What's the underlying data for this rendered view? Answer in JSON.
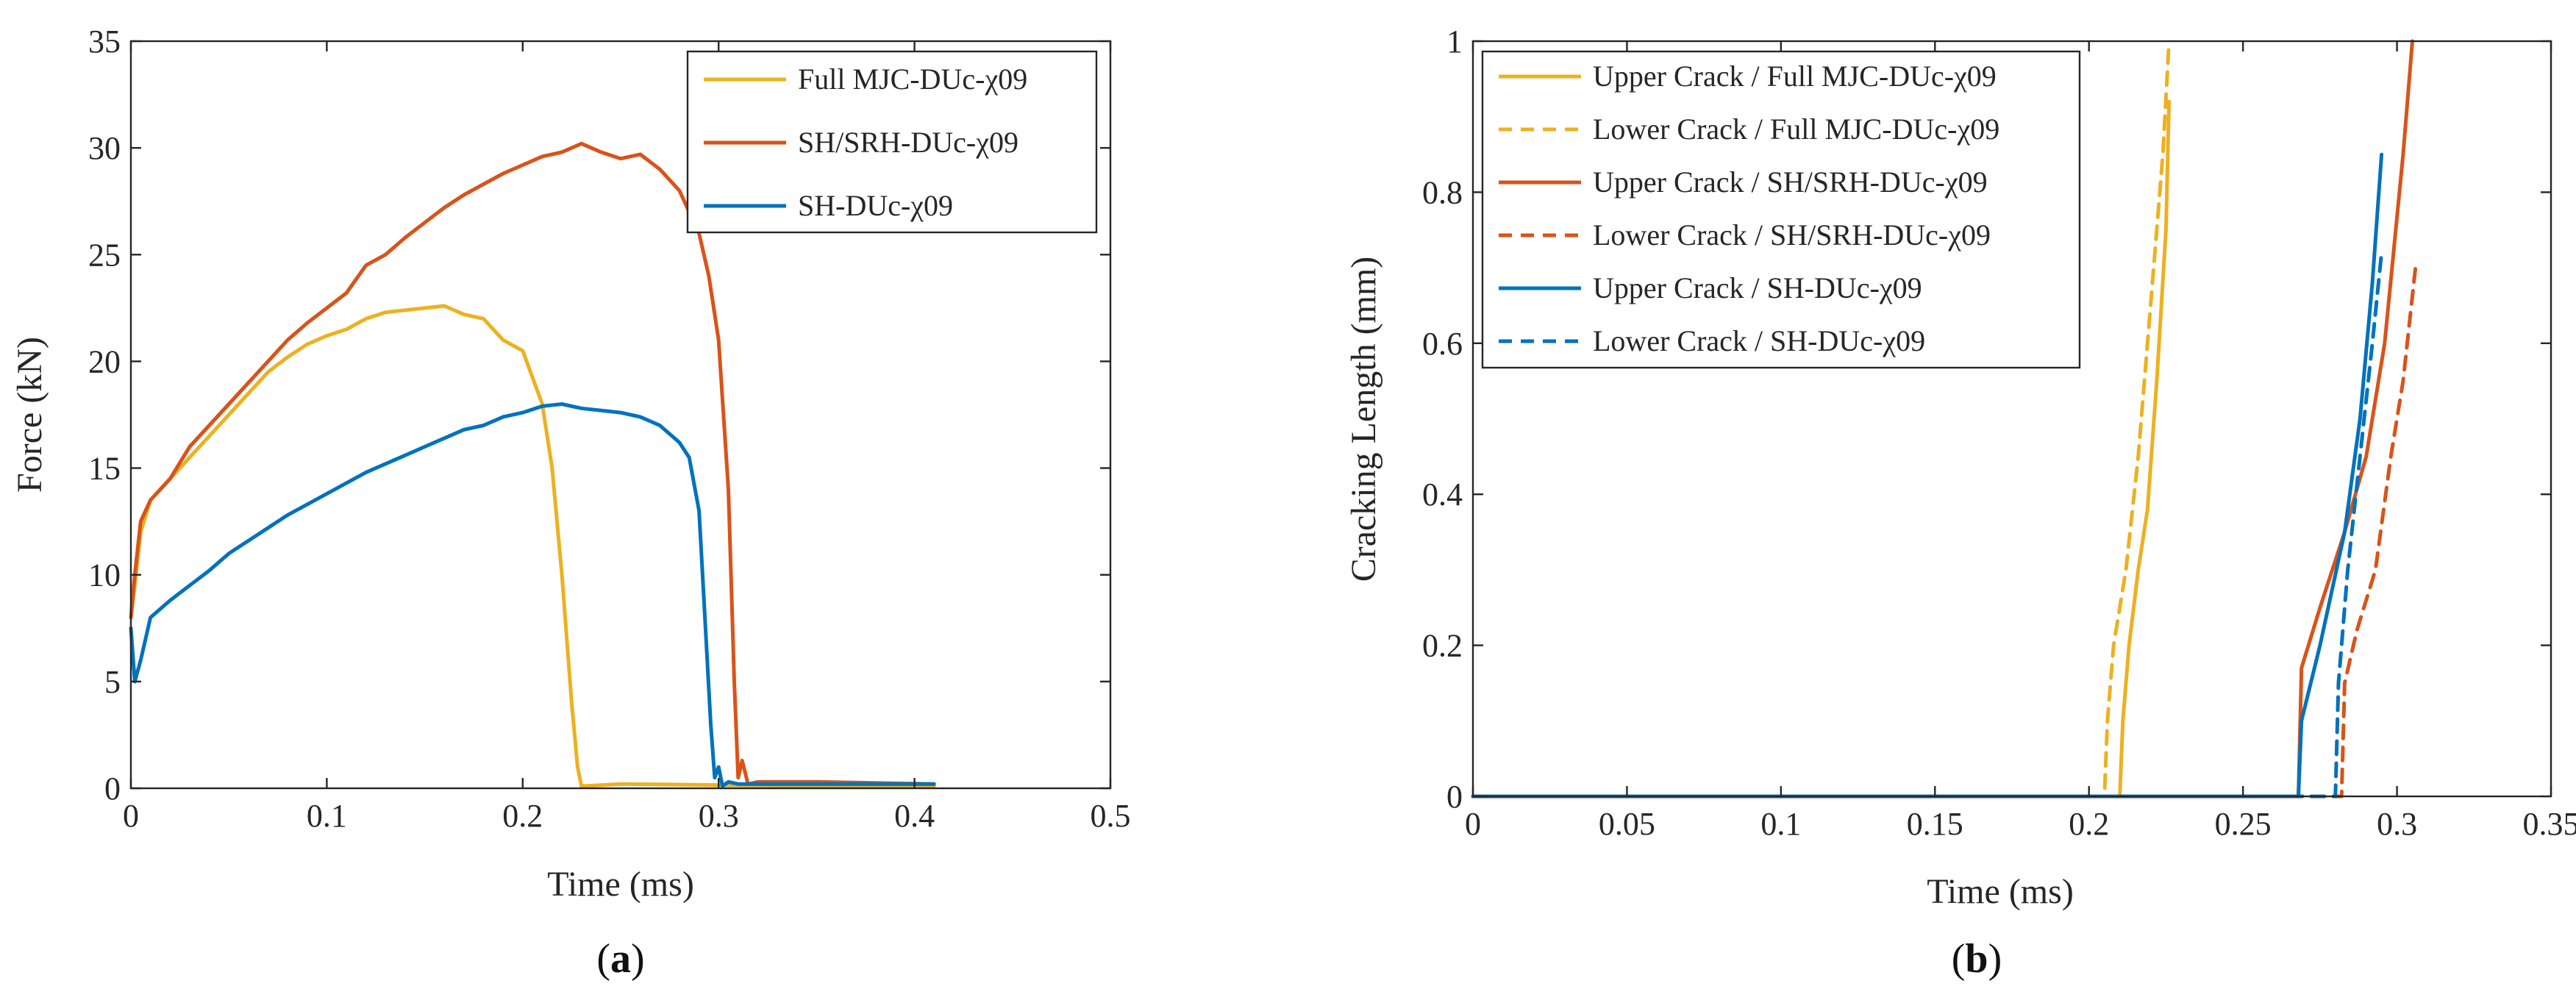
{
  "colors": {
    "yellow": "#EDB120",
    "orange": "#D95319",
    "blue": "#0072BD",
    "axis": "#262626"
  },
  "panels": [
    {
      "label_pre": "(",
      "label_letter": "a",
      "label_post": ")"
    },
    {
      "label_pre": "(",
      "label_letter": "b",
      "label_post": ")"
    }
  ],
  "chart_data": [
    {
      "type": "line",
      "title": "",
      "xlabel": "Time (ms)",
      "ylabel": "Force (kN)",
      "xlim": [
        0,
        0.5
      ],
      "ylim": [
        0,
        35
      ],
      "xticks": [
        0,
        0.1,
        0.2,
        0.3,
        0.4,
        0.5
      ],
      "xtick_labels": [
        "0",
        "0.1",
        "0.2",
        "0.3",
        "0.4",
        "0.5"
      ],
      "yticks": [
        0,
        5,
        10,
        15,
        20,
        25,
        30,
        35
      ],
      "ytick_labels": [
        "0",
        "5",
        "10",
        "15",
        "20",
        "25",
        "30",
        "35"
      ],
      "legend_position": "top-right",
      "series": [
        {
          "name": "Full MJC-DUc-χ09",
          "color": "#EDB120",
          "dash": "solid",
          "x": [
            0,
            0.002,
            0.005,
            0.01,
            0.02,
            0.03,
            0.04,
            0.05,
            0.06,
            0.07,
            0.08,
            0.09,
            0.1,
            0.11,
            0.12,
            0.13,
            0.14,
            0.15,
            0.16,
            0.17,
            0.18,
            0.19,
            0.2,
            0.21,
            0.215,
            0.22,
            0.225,
            0.228,
            0.23,
            0.25,
            0.3,
            0.35,
            0.41
          ],
          "y": [
            8,
            9.5,
            12,
            13.5,
            14.5,
            15.5,
            16.5,
            17.5,
            18.5,
            19.5,
            20.2,
            20.8,
            21.2,
            21.5,
            22.0,
            22.3,
            22.4,
            22.5,
            22.6,
            22.2,
            22.0,
            21.0,
            20.5,
            18.0,
            15.0,
            10.0,
            4.0,
            1.0,
            0.1,
            0.2,
            0.15,
            0.1,
            0.1
          ]
        },
        {
          "name": "SH/SRH-DUc-χ09",
          "color": "#D95319",
          "dash": "solid",
          "x": [
            0,
            0.002,
            0.005,
            0.01,
            0.02,
            0.03,
            0.04,
            0.05,
            0.06,
            0.07,
            0.08,
            0.09,
            0.1,
            0.11,
            0.12,
            0.13,
            0.14,
            0.15,
            0.16,
            0.17,
            0.18,
            0.19,
            0.2,
            0.21,
            0.22,
            0.23,
            0.24,
            0.25,
            0.26,
            0.27,
            0.28,
            0.29,
            0.295,
            0.3,
            0.305,
            0.308,
            0.31,
            0.312,
            0.315,
            0.32,
            0.35,
            0.41
          ],
          "y": [
            8,
            10,
            12.5,
            13.5,
            14.5,
            16,
            17,
            18,
            19,
            20,
            21,
            21.8,
            22.5,
            23.2,
            24.5,
            25.0,
            25.8,
            26.5,
            27.2,
            27.8,
            28.3,
            28.8,
            29.2,
            29.6,
            29.8,
            30.2,
            29.8,
            29.5,
            29.7,
            29.0,
            28.0,
            26.0,
            24.0,
            21.0,
            14.0,
            5.0,
            0.5,
            1.3,
            0.2,
            0.3,
            0.3,
            0.2
          ]
        },
        {
          "name": "SH-DUc-χ09",
          "color": "#0072BD",
          "dash": "solid",
          "x": [
            0,
            0.002,
            0.005,
            0.01,
            0.02,
            0.03,
            0.04,
            0.05,
            0.06,
            0.07,
            0.08,
            0.09,
            0.1,
            0.11,
            0.12,
            0.13,
            0.14,
            0.15,
            0.16,
            0.17,
            0.18,
            0.19,
            0.2,
            0.21,
            0.22,
            0.23,
            0.24,
            0.25,
            0.26,
            0.27,
            0.28,
            0.285,
            0.29,
            0.293,
            0.296,
            0.298,
            0.3,
            0.302,
            0.305,
            0.31,
            0.35,
            0.41
          ],
          "y": [
            7.5,
            5,
            6,
            8,
            8.8,
            9.5,
            10.2,
            11,
            11.6,
            12.2,
            12.8,
            13.3,
            13.8,
            14.3,
            14.8,
            15.2,
            15.6,
            16.0,
            16.4,
            16.8,
            17.0,
            17.4,
            17.6,
            17.9,
            18.0,
            17.8,
            17.7,
            17.6,
            17.4,
            17.0,
            16.2,
            15.5,
            13.0,
            8.0,
            3.0,
            0.5,
            1.0,
            0.1,
            0.3,
            0.2,
            0.2,
            0.2
          ]
        }
      ]
    },
    {
      "type": "line",
      "title": "",
      "xlabel": "Time (ms)",
      "ylabel": "Cracking Length (mm)",
      "xlim": [
        0,
        0.35
      ],
      "ylim": [
        0,
        1
      ],
      "xticks": [
        0,
        0.05,
        0.1,
        0.15,
        0.2,
        0.25,
        0.3,
        0.35
      ],
      "xtick_labels": [
        "0",
        "0.05",
        "0.1",
        "0.15",
        "0.2",
        "0.25",
        "0.3",
        "0.35"
      ],
      "yticks": [
        0,
        0.2,
        0.4,
        0.6,
        0.8,
        1
      ],
      "ytick_labels": [
        "0",
        "0.2",
        "0.4",
        "0.6",
        "0.8",
        "1"
      ],
      "legend_position": "top-left",
      "series": [
        {
          "name": "Upper Crack / Full MJC-DUc-χ09",
          "color": "#EDB120",
          "dash": "solid",
          "x": [
            0,
            0.21,
            0.211,
            0.213,
            0.216,
            0.219,
            0.222,
            0.225,
            0.226
          ],
          "y": [
            0,
            0,
            0.1,
            0.2,
            0.3,
            0.38,
            0.55,
            0.75,
            0.92
          ]
        },
        {
          "name": "Lower Crack / Full MJC-DUc-χ09",
          "color": "#EDB120",
          "dash": "dashed",
          "x": [
            0,
            0.205,
            0.206,
            0.208,
            0.212,
            0.216,
            0.22,
            0.224,
            0.226
          ],
          "y": [
            0,
            0,
            0.1,
            0.2,
            0.3,
            0.45,
            0.65,
            0.85,
            1.0
          ]
        },
        {
          "name": "Upper Crack / SH/SRH-DUc-χ09",
          "color": "#D95319",
          "dash": "solid",
          "x": [
            0,
            0.268,
            0.269,
            0.275,
            0.283,
            0.29,
            0.296,
            0.302,
            0.305
          ],
          "y": [
            0,
            0,
            0.17,
            0.25,
            0.35,
            0.45,
            0.6,
            0.85,
            1.0
          ]
        },
        {
          "name": "Lower Crack / SH/SRH-DUc-χ09",
          "color": "#D95319",
          "dash": "dashed",
          "x": [
            0,
            0.282,
            0.283,
            0.287,
            0.293,
            0.298,
            0.302,
            0.306
          ],
          "y": [
            0,
            0,
            0.15,
            0.22,
            0.3,
            0.45,
            0.55,
            0.7
          ]
        },
        {
          "name": "Upper Crack / SH-DUc-χ09",
          "color": "#0072BD",
          "dash": "solid",
          "x": [
            0,
            0.268,
            0.269,
            0.275,
            0.283,
            0.288,
            0.292,
            0.295
          ],
          "y": [
            0,
            0,
            0.1,
            0.2,
            0.35,
            0.5,
            0.68,
            0.85
          ]
        },
        {
          "name": "Lower Crack / SH-DUc-χ09",
          "color": "#0072BD",
          "dash": "dashed",
          "x": [
            0,
            0.28,
            0.281,
            0.284,
            0.288,
            0.292,
            0.295
          ],
          "y": [
            0,
            0,
            0.15,
            0.3,
            0.45,
            0.6,
            0.72
          ]
        }
      ]
    }
  ]
}
